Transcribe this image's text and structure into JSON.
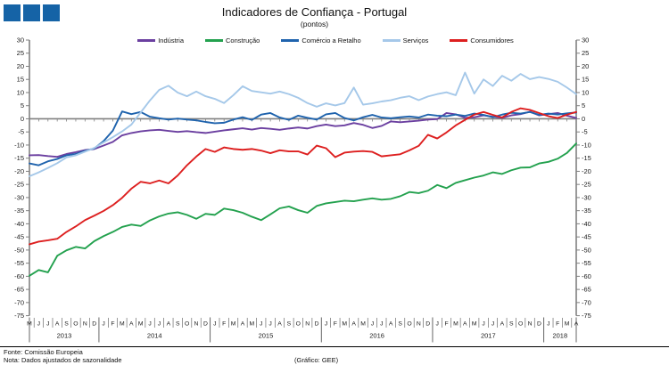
{
  "header": {
    "title": "Indicadores de Confiança - Portugal",
    "subtitle": "(pontos)"
  },
  "logo": {
    "color": "#1563a6",
    "squares": 3
  },
  "footer": {
    "source": "Fonte: Comissão Europeia",
    "note": "Nota: Dados ajustados de sazonalidade",
    "credit": "(Gráfico: GEE)"
  },
  "chart_data": {
    "type": "line",
    "title": "Indicadores de Confiança - Portugal",
    "subtitle": "(pontos)",
    "ylim": [
      -75,
      30
    ],
    "ytick_step": 5,
    "grid": false,
    "legend_position": "top",
    "axis_color": "#808080",
    "months": [
      "M",
      "J",
      "J",
      "A",
      "S",
      "O",
      "N",
      "D",
      "J",
      "F",
      "M",
      "A",
      "M",
      "J",
      "J",
      "A",
      "S",
      "O",
      "N",
      "D",
      "J",
      "F",
      "M",
      "A",
      "M",
      "J",
      "J",
      "A",
      "S",
      "O",
      "N",
      "D",
      "J",
      "F",
      "M",
      "A",
      "M",
      "J",
      "J",
      "A",
      "S",
      "O",
      "N",
      "D",
      "J",
      "F",
      "M",
      "A",
      "M",
      "J",
      "J",
      "A",
      "S",
      "O",
      "N",
      "D",
      "J",
      "F",
      "M",
      "A"
    ],
    "years": [
      {
        "label": "2013",
        "count": 8
      },
      {
        "label": "2014",
        "count": 12
      },
      {
        "label": "2015",
        "count": 12
      },
      {
        "label": "2016",
        "count": 12
      },
      {
        "label": "2017",
        "count": 12
      },
      {
        "label": "2018",
        "count": 4
      }
    ],
    "series": [
      {
        "name": "Indústria",
        "color": "#6b3fa0",
        "values": [
          -13.9,
          -13.8,
          -14.2,
          -14.5,
          -13.4,
          -12.7,
          -11.9,
          -11.5,
          -10.2,
          -8.8,
          -6.3,
          -5.4,
          -4.8,
          -4.4,
          -4.2,
          -4.6,
          -5.0,
          -4.7,
          -5.1,
          -5.4,
          -4.9,
          -4.4,
          -4.0,
          -3.6,
          -4.1,
          -3.5,
          -3.8,
          -4.2,
          -3.7,
          -3.3,
          -3.7,
          -2.8,
          -2.2,
          -2.8,
          -2.5,
          -1.6,
          -2.3,
          -3.5,
          -2.7,
          -1.0,
          -1.3,
          -1.0,
          -0.7,
          -0.3,
          -0.1,
          2.2,
          1.7,
          0.4,
          0.6,
          1.3,
          0.8,
          0.4,
          1.3,
          1.8,
          2.7,
          1.3,
          1.8,
          2.2,
          1.2,
          0.3
        ]
      },
      {
        "name": "Construção",
        "color": "#23a14e",
        "values": [
          -59.8,
          -57.6,
          -58.5,
          -52.2,
          -50.1,
          -48.8,
          -49.4,
          -46.6,
          -44.7,
          -43.1,
          -41.2,
          -40.3,
          -40.8,
          -38.7,
          -37.2,
          -36.1,
          -35.6,
          -36.6,
          -38.1,
          -36.2,
          -36.6,
          -34.2,
          -34.8,
          -35.8,
          -37.3,
          -38.6,
          -36.4,
          -34.1,
          -33.4,
          -34.8,
          -35.8,
          -33.2,
          -32.2,
          -31.7,
          -31.2,
          -31.4,
          -30.8,
          -30.3,
          -30.8,
          -30.5,
          -29.5,
          -27.9,
          -28.3,
          -27.4,
          -25.2,
          -26.4,
          -24.4,
          -23.4,
          -22.4,
          -21.6,
          -20.4,
          -21.0,
          -19.6,
          -18.6,
          -18.5,
          -17.0,
          -16.4,
          -15.2,
          -13.0,
          -9.4
        ]
      },
      {
        "name": "Comércio a Retalho",
        "color": "#1f63ad",
        "values": [
          -17.0,
          -17.7,
          -16.2,
          -15.3,
          -13.9,
          -13.4,
          -12.2,
          -11.3,
          -8.5,
          -4.5,
          2.8,
          1.8,
          2.6,
          0.8,
          0.2,
          -0.3,
          0.1,
          -0.3,
          -0.6,
          -1.2,
          -1.7,
          -1.5,
          -0.3,
          0.6,
          -0.4,
          1.6,
          2.2,
          0.5,
          -0.4,
          1.2,
          0.4,
          -0.3,
          1.7,
          2.2,
          0.3,
          -0.6,
          0.6,
          1.5,
          0.5,
          0.2,
          0.6,
          0.9,
          0.5,
          1.6,
          1.2,
          1.0,
          1.6,
          1.1,
          2.0,
          1.5,
          0.6,
          1.6,
          2.3,
          2.0,
          2.6,
          1.5,
          2.0,
          1.6,
          2.1,
          2.4
        ]
      },
      {
        "name": "Serviços",
        "color": "#a5c8e9",
        "values": [
          -21.9,
          -20.4,
          -18.7,
          -16.9,
          -14.7,
          -13.9,
          -12.5,
          -11.1,
          -9.0,
          -7.0,
          -4.8,
          -2.2,
          2.4,
          7.0,
          11.0,
          12.6,
          10.0,
          8.6,
          10.4,
          8.6,
          7.6,
          6.0,
          9.0,
          12.4,
          10.6,
          10.1,
          9.6,
          10.4,
          9.4,
          8.0,
          6.0,
          4.6,
          5.9,
          5.1,
          6.0,
          11.9,
          5.4,
          5.9,
          6.6,
          7.1,
          8.0,
          8.6,
          7.1,
          8.5,
          9.4,
          10.1,
          9.0,
          17.6,
          9.6,
          15.0,
          12.5,
          16.4,
          14.5,
          17.1,
          15.1,
          15.9,
          15.2,
          14.1,
          11.9,
          9.4
        ]
      },
      {
        "name": "Consumidores",
        "color": "#dd1f1f",
        "values": [
          -47.8,
          -46.8,
          -46.3,
          -45.7,
          -43.1,
          -41.0,
          -38.6,
          -36.9,
          -35.1,
          -32.9,
          -30.1,
          -26.6,
          -24.0,
          -24.6,
          -23.5,
          -24.6,
          -21.6,
          -17.7,
          -14.4,
          -11.5,
          -12.6,
          -10.9,
          -11.5,
          -11.8,
          -11.5,
          -12.1,
          -13.1,
          -12.0,
          -12.4,
          -12.4,
          -13.6,
          -10.2,
          -11.2,
          -14.6,
          -12.9,
          -12.5,
          -12.3,
          -12.6,
          -14.3,
          -13.9,
          -13.5,
          -12.0,
          -10.3,
          -6.1,
          -7.5,
          -5.2,
          -2.5,
          -0.4,
          1.6,
          2.6,
          1.5,
          0.5,
          2.6,
          4.0,
          3.4,
          2.2,
          1.0,
          0.3,
          1.6,
          2.6
        ]
      }
    ]
  }
}
